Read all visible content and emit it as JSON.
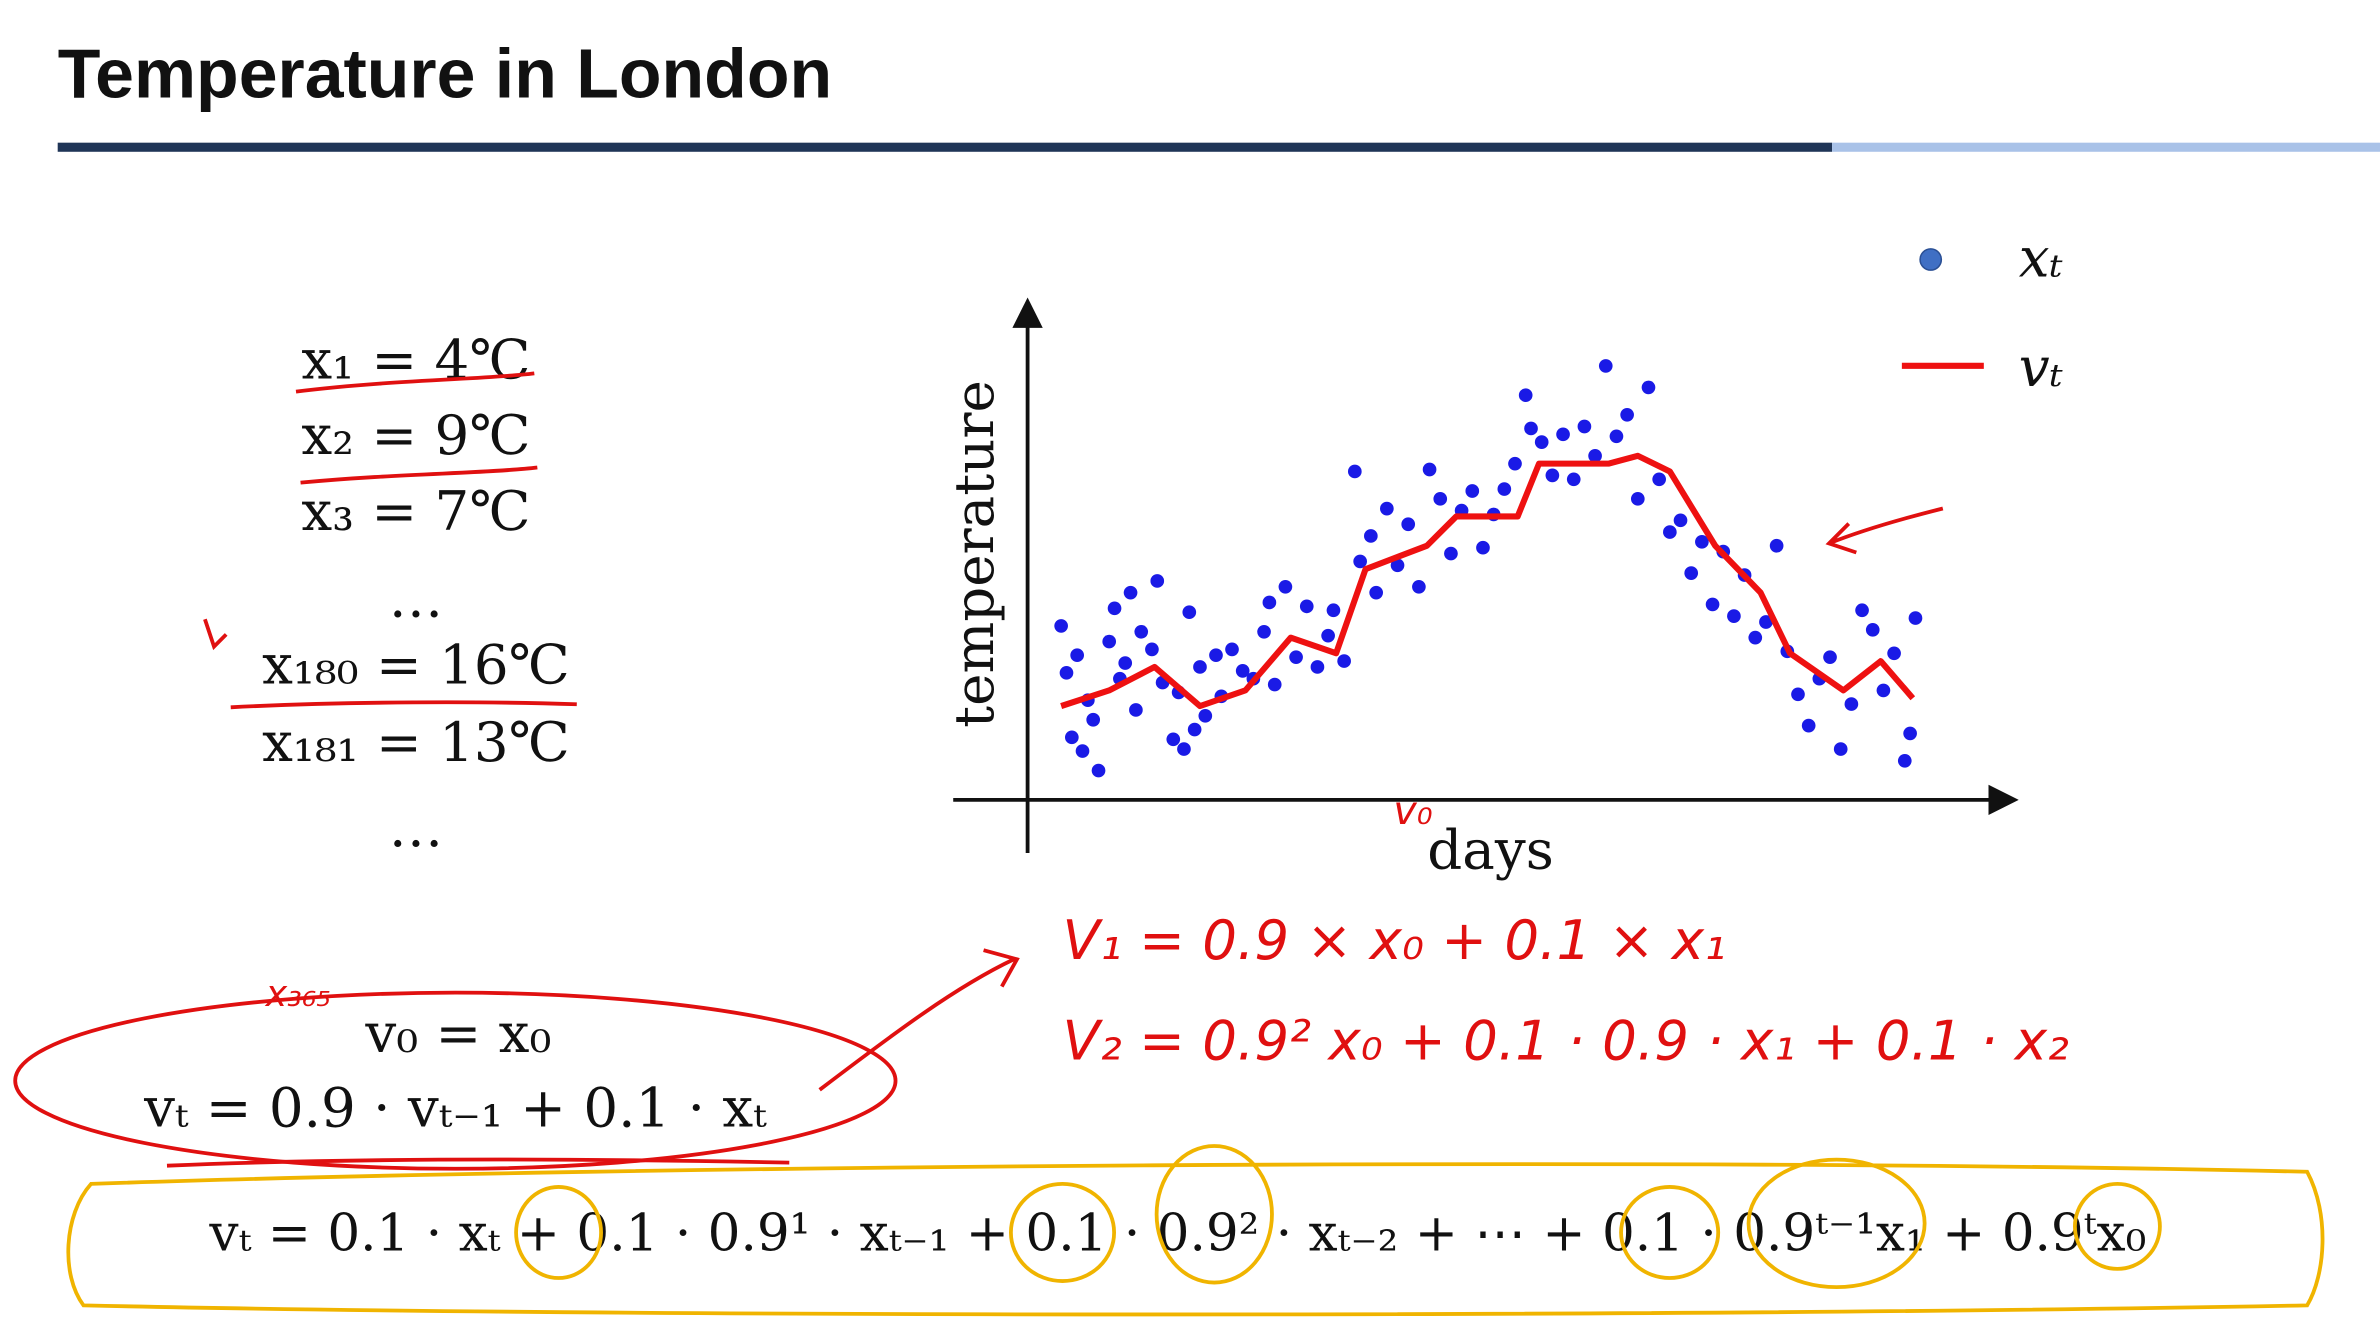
{
  "header": {
    "title": "Temperature in London"
  },
  "observations": [
    "x₁ = 4℃",
    "x₂ = 9℃",
    "x₃ = 7℃",
    "…",
    "x₁₈₀ = 16℃",
    "x₁₈₁ = 13℃",
    "…"
  ],
  "equations": [
    "v₀ = x₀",
    "vₜ = 0.9 · vₜ₋₁ + 0.1 · xₜ",
    "vₜ = 0.1 · xₜ + 0.1 · 0.9¹ · xₜ₋₁ + 0.1 · 0.9² · xₜ₋₂ + ⋯ + 0.1 · 0.9ᵗ⁻¹x₁ + 0.9ᵗx₀"
  ],
  "annotations": [
    "V₁ = 0.9 × x₀ + 0.1 × x₁",
    "V₂ = 0.9² x₀ + 0.1 · 0.9 · x₁ + 0.1 · x₂",
    "x₃₆₅",
    "v₀"
  ],
  "chart_data": {
    "type": "scatter",
    "x_label": "days",
    "y_label": "temperature",
    "xlim": [
      0,
      365
    ],
    "ylim": [
      0,
      25
    ],
    "legend": "upper right",
    "series": [
      {
        "name": "xₜ",
        "type": "scatter",
        "color": "#1a1ae6",
        "x": [
          12,
          14,
          16,
          18,
          20,
          22,
          24,
          26,
          30,
          32,
          34,
          36,
          38,
          40,
          42,
          46,
          48,
          50,
          54,
          56,
          58,
          60,
          62,
          64,
          66,
          70,
          72,
          76,
          80,
          84,
          88,
          90,
          92,
          96,
          100,
          104,
          108,
          112,
          114,
          118,
          122,
          124,
          128,
          130,
          134,
          138,
          142,
          146,
          150,
          154,
          158,
          162,
          166,
          170,
          174,
          178,
          182,
          186,
          188,
          192,
          196,
          200,
          204,
          208,
          212,
          216,
          220,
          224,
          228,
          232,
          236,
          240,
          244,
          248,
          252,
          256,
          260,
          264,
          268,
          272,
          276,
          280,
          284,
          288,
          292,
          296,
          300,
          304,
          308,
          312,
          316,
          320,
          324,
          328,
          330,
          332
        ],
        "values": [
          8.9,
          6.5,
          3.2,
          7.4,
          2.5,
          5.1,
          4.1,
          1.5,
          8.1,
          9.8,
          6.2,
          7.0,
          10.6,
          4.6,
          8.6,
          7.7,
          11.2,
          6.0,
          3.1,
          5.5,
          2.6,
          9.6,
          3.6,
          6.8,
          4.3,
          7.4,
          5.3,
          7.7,
          6.6,
          6.2,
          8.6,
          10.1,
          5.9,
          10.9,
          7.3,
          9.9,
          6.8,
          8.4,
          9.7,
          7.1,
          16.8,
          12.2,
          13.5,
          10.6,
          14.9,
          12.0,
          14.1,
          10.9,
          16.9,
          15.4,
          12.6,
          14.8,
          15.8,
          12.9,
          14.6,
          15.9,
          17.2,
          20.7,
          19.0,
          18.3,
          16.6,
          18.7,
          16.4,
          19.1,
          17.6,
          22.2,
          18.6,
          19.7,
          15.4,
          21.1,
          16.4,
          13.7,
          14.3,
          11.6,
          13.2,
          10.0,
          12.7,
          9.4,
          11.5,
          8.3,
          9.1,
          13.0,
          7.6,
          5.4,
          3.8,
          6.2,
          7.3,
          2.6,
          4.9,
          9.7,
          8.7,
          5.6,
          7.5,
          2.0,
          3.4,
          9.3
        ]
      },
      {
        "name": "vₜ",
        "type": "line",
        "color": "#ee1111",
        "x": [
          12,
          30,
          47,
          64,
          81,
          98,
          115,
          126,
          149,
          160,
          183,
          191,
          217,
          228,
          240,
          257,
          274,
          285,
          305,
          319,
          331
        ],
        "values": [
          4.8,
          5.6,
          6.8,
          4.8,
          5.6,
          8.3,
          7.5,
          11.8,
          13,
          14.5,
          14.5,
          17.2,
          17.2,
          17.6,
          16.8,
          13,
          10.6,
          7.5,
          5.6,
          7.1,
          5.2
        ]
      }
    ]
  }
}
